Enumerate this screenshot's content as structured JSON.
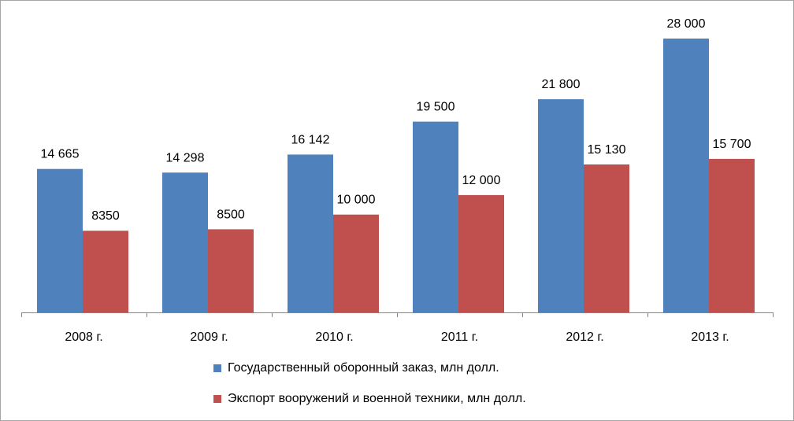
{
  "chart_data": {
    "type": "bar",
    "categories": [
      "2008 г.",
      "2009 г.",
      "2010 г.",
      "2011 г.",
      "2012 г.",
      "2013 г."
    ],
    "series": [
      {
        "name": "Государственный оборонный заказ, млн долл.",
        "color": "#4f81bd",
        "values": [
          14665,
          14298,
          16142,
          19500,
          21800,
          28000
        ],
        "labels": [
          "14 665",
          "14 298",
          "16 142",
          "19 500",
          "21 800",
          "28 000"
        ]
      },
      {
        "name": "Экспорт вооружений и военной техники, млн долл.",
        "color": "#c0504d",
        "values": [
          8350,
          8500,
          10000,
          12000,
          15130,
          15700
        ],
        "labels": [
          "8350",
          "8500",
          "10 000",
          "12 000",
          "15 130",
          "15 700"
        ]
      }
    ],
    "title": "",
    "xlabel": "",
    "ylabel": "",
    "ylim": [
      0,
      28000
    ],
    "grid": false,
    "legend_position": "bottom"
  }
}
